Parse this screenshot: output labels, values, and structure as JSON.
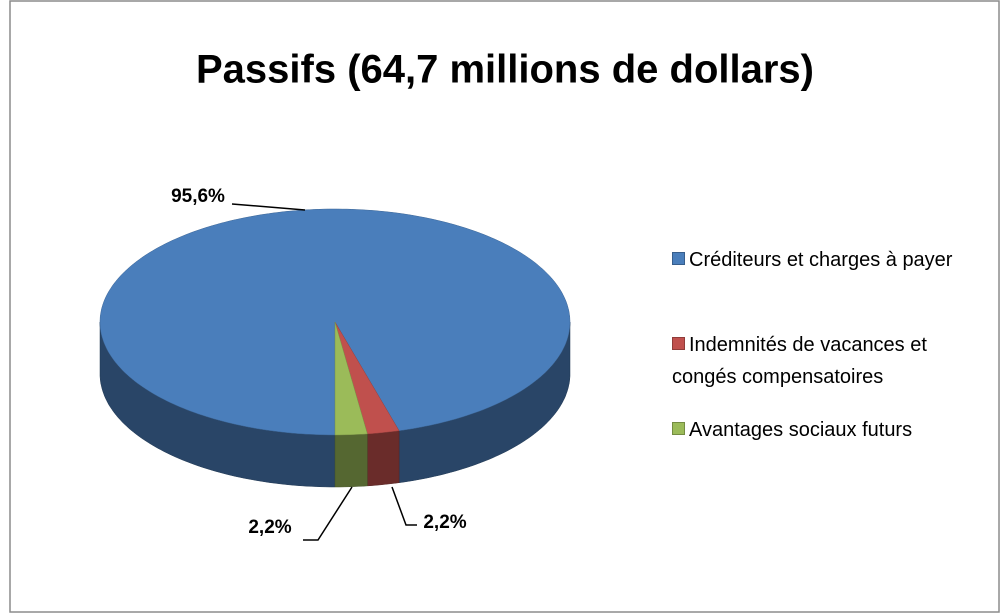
{
  "chart_data": {
    "type": "pie",
    "title": "Passifs (64,7 millions de dollars)",
    "categories": [
      "Créditeurs et charges à payer",
      "Indemnités de vacances et congés compensatoires",
      "Avantages sociaux futurs"
    ],
    "values": [
      95.6,
      2.2,
      2.2
    ],
    "value_labels": [
      "95,6%",
      "2,2%",
      "2,2%"
    ],
    "colors": [
      "#4a7ebb",
      "#c0504d",
      "#9bbb59"
    ],
    "legend": "right"
  }
}
